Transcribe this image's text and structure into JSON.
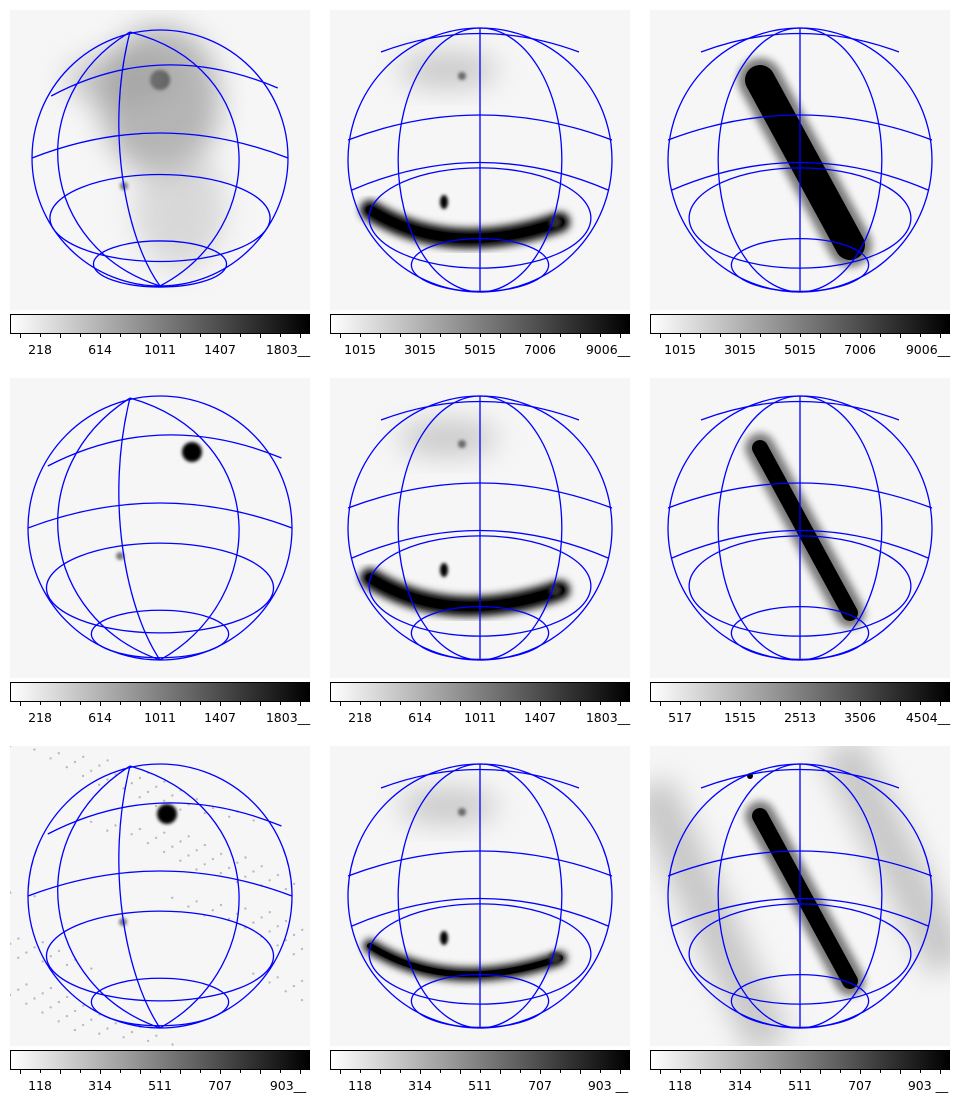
{
  "figure": {
    "colors": {
      "grid": "#0000ff",
      "colorbar_low": "#ffffff",
      "colorbar_high": "#000000"
    },
    "colorbar_tick_fractions": [
      0.067,
      0.2,
      0.333,
      0.467,
      0.6,
      0.733,
      0.867
    ],
    "panels": [
      {
        "name": "panel-r1-c1",
        "globe": "tilted-dense",
        "features": [
          "bright-spot",
          "faint-spot",
          "diffuse-upper-band"
        ],
        "colorbar": {
          "labels": [
            "218",
            "614",
            "1011",
            "1407",
            "1803__"
          ]
        }
      },
      {
        "name": "panel-r1-c2",
        "globe": "center-meridian",
        "features": [
          "lower-arc",
          "small-spot",
          "faint-top-spot"
        ],
        "colorbar": {
          "labels": [
            "1015",
            "3015",
            "5015",
            "7006",
            "9006__"
          ]
        }
      },
      {
        "name": "panel-r1-c3",
        "globe": "center-meridian",
        "features": [
          "diagonal-band"
        ],
        "colorbar": {
          "labels": [
            "1015",
            "3015",
            "5015",
            "7006",
            "9006__"
          ]
        }
      },
      {
        "name": "panel-r2-c1",
        "globe": "tilted",
        "features": [
          "bright-spot",
          "faint-spot"
        ],
        "colorbar": {
          "labels": [
            "218",
            "614",
            "1011",
            "1407",
            "1803__"
          ]
        }
      },
      {
        "name": "panel-r2-c2",
        "globe": "center-meridian",
        "features": [
          "lower-arc",
          "small-spot",
          "faint-top-spot"
        ],
        "colorbar": {
          "labels": [
            "218",
            "614",
            "1011",
            "1407",
            "1803__"
          ]
        }
      },
      {
        "name": "panel-r2-c3",
        "globe": "center-meridian",
        "features": [
          "diagonal-band-thin"
        ],
        "colorbar": {
          "labels": [
            "517",
            "1515",
            "2513",
            "3506",
            "4504__"
          ]
        }
      },
      {
        "name": "panel-r3-c1",
        "globe": "tilted",
        "features": [
          "bright-spot",
          "faint-spot",
          "noise"
        ],
        "colorbar": {
          "labels": [
            "118",
            "314",
            "511",
            "707",
            "903__"
          ]
        }
      },
      {
        "name": "panel-r3-c2",
        "globe": "center-meridian",
        "features": [
          "lower-arc-thin",
          "small-spot",
          "faint-top-spot"
        ],
        "colorbar": {
          "labels": [
            "118",
            "314",
            "511",
            "707",
            "903 __"
          ]
        }
      },
      {
        "name": "panel-r3-c3",
        "globe": "center-meridian",
        "features": [
          "diagonal-band-thin",
          "side-bands"
        ],
        "colorbar": {
          "labels": [
            "118",
            "314",
            "511",
            "707",
            "903 __"
          ]
        }
      }
    ]
  }
}
